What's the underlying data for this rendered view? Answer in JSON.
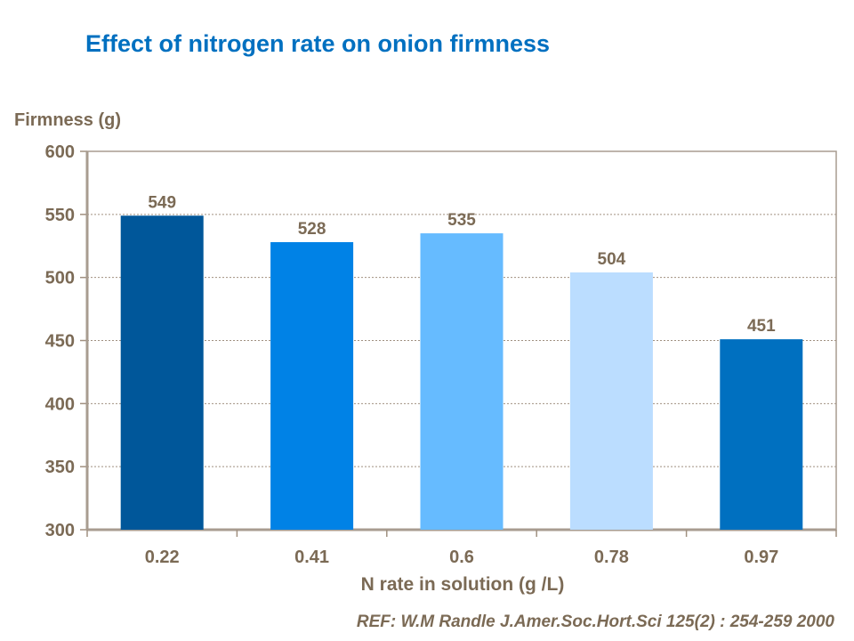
{
  "chart_data": {
    "type": "bar",
    "title": "Effect of nitrogen rate on onion firmness",
    "xlabel": "N rate in solution (g /L)",
    "ylabel": "Firmness (g)",
    "categories": [
      "0.22",
      "0.41",
      "0.6",
      "0.78",
      "0.97"
    ],
    "values": [
      549,
      528,
      535,
      504,
      451
    ],
    "data_labels": [
      "549",
      "528",
      "535",
      "504",
      "451"
    ],
    "bar_colors": [
      "#00579A",
      "#0082E6",
      "#66BBFF",
      "#BBDDFF",
      "#0070C0"
    ],
    "ylim": [
      300,
      600
    ],
    "yticks": [
      "300",
      "350",
      "400",
      "450",
      "500",
      "550",
      "600"
    ],
    "grid": true,
    "legend": "none",
    "annotation": "REF: W.M Randle  J.Amer.Soc.Hort.Sci 125(2) : 254-259 2000"
  }
}
